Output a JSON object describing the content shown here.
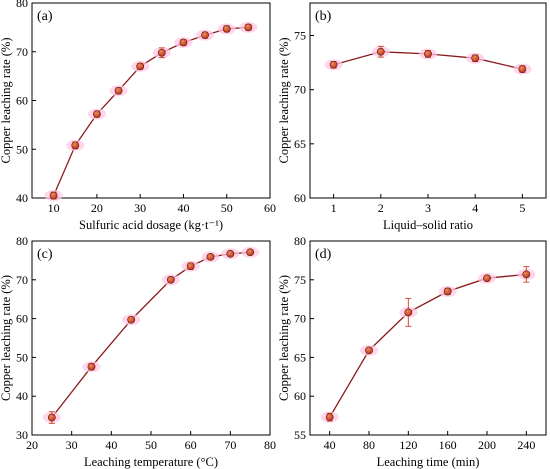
{
  "colors": {
    "line": "#8b1a1a",
    "marker": "#b5361c",
    "marker_highlight": "#f08a5a",
    "halo": "#ffc8e6",
    "errorbar": "#d0503a",
    "axis": "#000000"
  },
  "chart_data": [
    {
      "type": "line",
      "label": "(a)",
      "xlabel": "Sulfuric acid dosage (kg·t⁻¹)",
      "ylabel": "Copper leaching rate (%)",
      "xlim": [
        5,
        60
      ],
      "ylim": [
        40,
        80
      ],
      "xticks": [
        10,
        20,
        30,
        40,
        50,
        60
      ],
      "yticks": [
        40,
        50,
        60,
        70,
        80
      ],
      "x": [
        10,
        15,
        20,
        25,
        30,
        35,
        40,
        45,
        50,
        55
      ],
      "y": [
        40.5,
        50.8,
        57.2,
        62.0,
        67.0,
        69.8,
        71.9,
        73.4,
        74.7,
        75.0
      ],
      "err": [
        0.7,
        0.7,
        0.6,
        0.6,
        0.6,
        1.0,
        0.6,
        0.6,
        0.6,
        0.6
      ]
    },
    {
      "type": "line",
      "label": "(b)",
      "xlabel": "Liquid–solid ratio",
      "ylabel": "Copper leaching rate (%)",
      "xlim": [
        0.5,
        5.5
      ],
      "ylim": [
        60,
        78
      ],
      "xticks": [
        1,
        2,
        3,
        4,
        5
      ],
      "yticks": [
        60,
        65,
        70,
        75
      ],
      "x": [
        1,
        2,
        3,
        4,
        5
      ],
      "y": [
        72.3,
        73.5,
        73.3,
        72.9,
        71.9
      ],
      "err": [
        0.3,
        0.5,
        0.3,
        0.3,
        0.3
      ]
    },
    {
      "type": "line",
      "label": "(c)",
      "xlabel": "Leaching temperature (°C)",
      "ylabel": "Copper leaching rate (%)",
      "xlim": [
        20,
        80
      ],
      "ylim": [
        30,
        80
      ],
      "xticks": [
        20,
        30,
        40,
        50,
        60,
        70,
        80
      ],
      "yticks": [
        30,
        40,
        50,
        60,
        70,
        80
      ],
      "x": [
        25,
        35,
        45,
        55,
        60,
        65,
        70,
        75
      ],
      "y": [
        34.5,
        47.6,
        59.7,
        70.0,
        73.5,
        75.9,
        76.7,
        77.1
      ],
      "err": [
        1.5,
        0.8,
        0.6,
        0.6,
        0.8,
        0.6,
        0.6,
        0.6
      ]
    },
    {
      "type": "line",
      "label": "(d)",
      "xlabel": "Leaching time (min)",
      "ylabel": "Copper leaching rate (%)",
      "xlim": [
        20,
        260
      ],
      "ylim": [
        55,
        80
      ],
      "xticks": [
        40,
        80,
        120,
        160,
        200,
        240
      ],
      "yticks": [
        55,
        60,
        65,
        70,
        75,
        80
      ],
      "x": [
        40,
        80,
        120,
        160,
        200,
        240
      ],
      "y": [
        57.3,
        65.9,
        70.8,
        73.5,
        75.2,
        75.7
      ],
      "err": [
        0.5,
        0.3,
        1.8,
        0.4,
        0.3,
        1.0
      ]
    }
  ]
}
